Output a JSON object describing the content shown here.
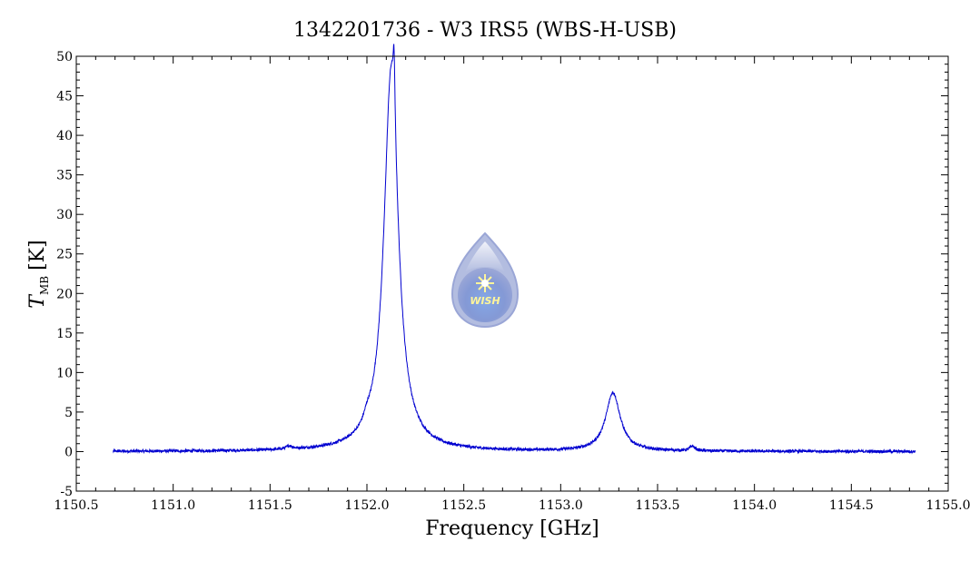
{
  "chart_data": {
    "type": "line",
    "title": "1342201736 - W3 IRS5 (WBS-H-USB)",
    "xlabel": "Frequency [GHz]",
    "ylabel_main": "T",
    "ylabel_sub": "MB",
    "ylabel_unit": "[K]",
    "xlim": [
      1150.5,
      1155.0
    ],
    "ylim": [
      -5,
      50
    ],
    "x_ticks": [
      "1150.5",
      "1151.0",
      "1151.5",
      "1152.0",
      "1152.5",
      "1153.0",
      "1153.5",
      "1154.0",
      "1154.5",
      "1155.0"
    ],
    "y_ticks": [
      "-5",
      "0",
      "5",
      "10",
      "15",
      "20",
      "25",
      "30",
      "35",
      "40",
      "45",
      "50"
    ],
    "x_range_data": [
      1150.69,
      1154.83
    ],
    "series": [
      {
        "color": "#0000d0",
        "baseline": 0.0,
        "noise": 0.18,
        "features": [
          {
            "center": 1152.125,
            "peak": 47.8,
            "width": 0.045
          },
          {
            "center": 1152.14,
            "peak": 8.0,
            "width": 0.006
          },
          {
            "center": 1152.0,
            "peak": 0.8,
            "width": 0.02
          },
          {
            "center": 1151.6,
            "peak": 0.4,
            "width": 0.02
          },
          {
            "center": 1153.27,
            "peak": 7.4,
            "width": 0.045
          },
          {
            "center": 1153.68,
            "peak": 0.6,
            "width": 0.015
          }
        ]
      }
    ],
    "grid": false,
    "legend": "none"
  },
  "logo": {
    "text": "WISH",
    "colors": {
      "outer": "#a8b6dd",
      "inner": "#7f95d4",
      "star": "#fff59a"
    }
  }
}
